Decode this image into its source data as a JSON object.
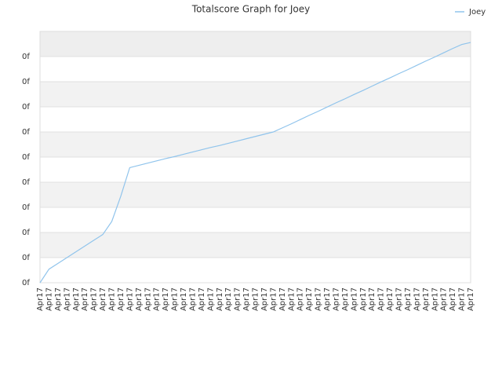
{
  "chart_data": {
    "type": "line",
    "title": "Totalscore Graph for Joey",
    "categories": [
      "Apr17",
      "Apr17",
      "Apr17",
      "Apr17",
      "Apr17",
      "Apr17",
      "Apr17",
      "Apr17",
      "Apr17",
      "Apr17",
      "Apr17",
      "Apr17",
      "Apr17",
      "Apr17",
      "Apr17",
      "Apr17",
      "Apr17",
      "Apr17",
      "Apr17",
      "Apr17",
      "Apr17",
      "Apr17",
      "Apr17",
      "Apr17",
      "Apr17",
      "Apr17",
      "Apr17",
      "Apr17",
      "Apr17",
      "Apr17",
      "Apr17",
      "Apr17",
      "Apr17",
      "Apr17",
      "Apr17",
      "Apr17",
      "Apr17",
      "Apr17",
      "Apr17",
      "Apr17",
      "Apr17",
      "Apr17",
      "Apr17",
      "Apr17",
      "Apr17",
      "Apr17",
      "Apr17",
      "Apr17",
      "Apr17"
    ],
    "series": [
      {
        "name": "Joey",
        "color": "#90c4ec",
        "values": [
          0,
          0.54,
          0.77,
          1.0,
          1.23,
          1.46,
          1.69,
          1.92,
          2.44,
          3.44,
          4.58,
          4.67,
          4.76,
          4.85,
          4.94,
          5.02,
          5.11,
          5.2,
          5.29,
          5.38,
          5.46,
          5.55,
          5.64,
          5.73,
          5.82,
          5.91,
          6.0,
          6.16,
          6.32,
          6.49,
          6.66,
          6.82,
          6.99,
          7.16,
          7.32,
          7.49,
          7.65,
          7.82,
          7.99,
          8.15,
          8.32,
          8.48,
          8.65,
          8.82,
          8.98,
          9.15,
          9.32,
          9.48,
          9.56
        ]
      }
    ],
    "ylim": [
      0,
      10
    ],
    "yticks": [
      {
        "value": 0,
        "label": "0f"
      },
      {
        "value": 1,
        "label": "0f"
      },
      {
        "value": 2,
        "label": "0f"
      },
      {
        "value": 3,
        "label": "0f"
      },
      {
        "value": 4,
        "label": "0f"
      },
      {
        "value": 5,
        "label": "0f"
      },
      {
        "value": 6,
        "label": "0f"
      },
      {
        "value": 7,
        "label": "0f"
      },
      {
        "value": 8,
        "label": "0f"
      },
      {
        "value": 9,
        "label": "0f"
      }
    ],
    "grid": true,
    "legend": "top-right"
  }
}
